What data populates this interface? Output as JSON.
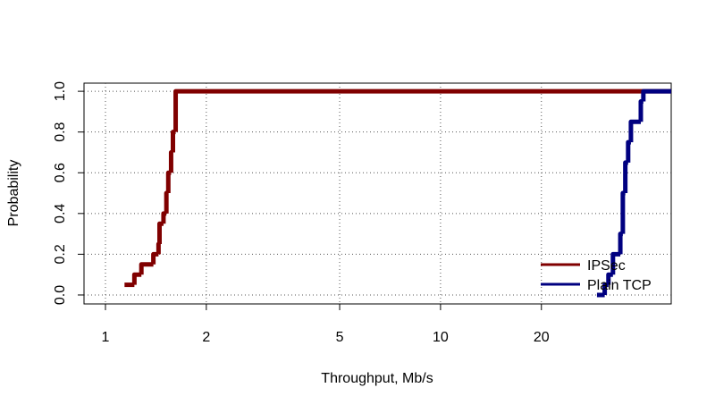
{
  "chart_data": {
    "type": "ecdf",
    "xlabel": "Throughput, Mb/s",
    "ylabel": "Probability",
    "log_x": true,
    "grid": true,
    "legend": "bottom-right",
    "xlim": [
      0.863,
      48.8
    ],
    "ylim": [
      -0.044,
      1.04
    ],
    "xticks": [
      1,
      2,
      5,
      10,
      20
    ],
    "yticks": [
      {
        "value": 0,
        "label": "0.0"
      },
      {
        "value": 0.2,
        "label": "0.2"
      },
      {
        "value": 0.4,
        "label": "0.4"
      },
      {
        "value": 0.6,
        "label": "0.6"
      },
      {
        "value": 0.8,
        "label": "0.8"
      },
      {
        "value": 1,
        "label": "1.0"
      }
    ],
    "series": [
      {
        "name": "IPSec",
        "color": "#800000",
        "x": [
          1.14,
          1.22,
          1.28,
          1.39,
          1.44,
          1.45,
          1.49,
          1.52,
          1.54,
          1.57,
          1.59,
          1.62
        ],
        "values": [
          0.05,
          0.1,
          0.15,
          0.2,
          0.25,
          0.35,
          0.4,
          0.5,
          0.6,
          0.7,
          0.8,
          1.0
        ]
      },
      {
        "name": "Plain TCP",
        "color": "#000080",
        "x": [
          29.3,
          30.9,
          31.7,
          32.7,
          34.4,
          35.0,
          35.6,
          36.3,
          37.0,
          39.6,
          40.3
        ],
        "values": [
          0,
          0.05,
          0.1,
          0.2,
          0.3,
          0.5,
          0.65,
          0.75,
          0.85,
          0.95,
          1.0
        ]
      }
    ]
  }
}
